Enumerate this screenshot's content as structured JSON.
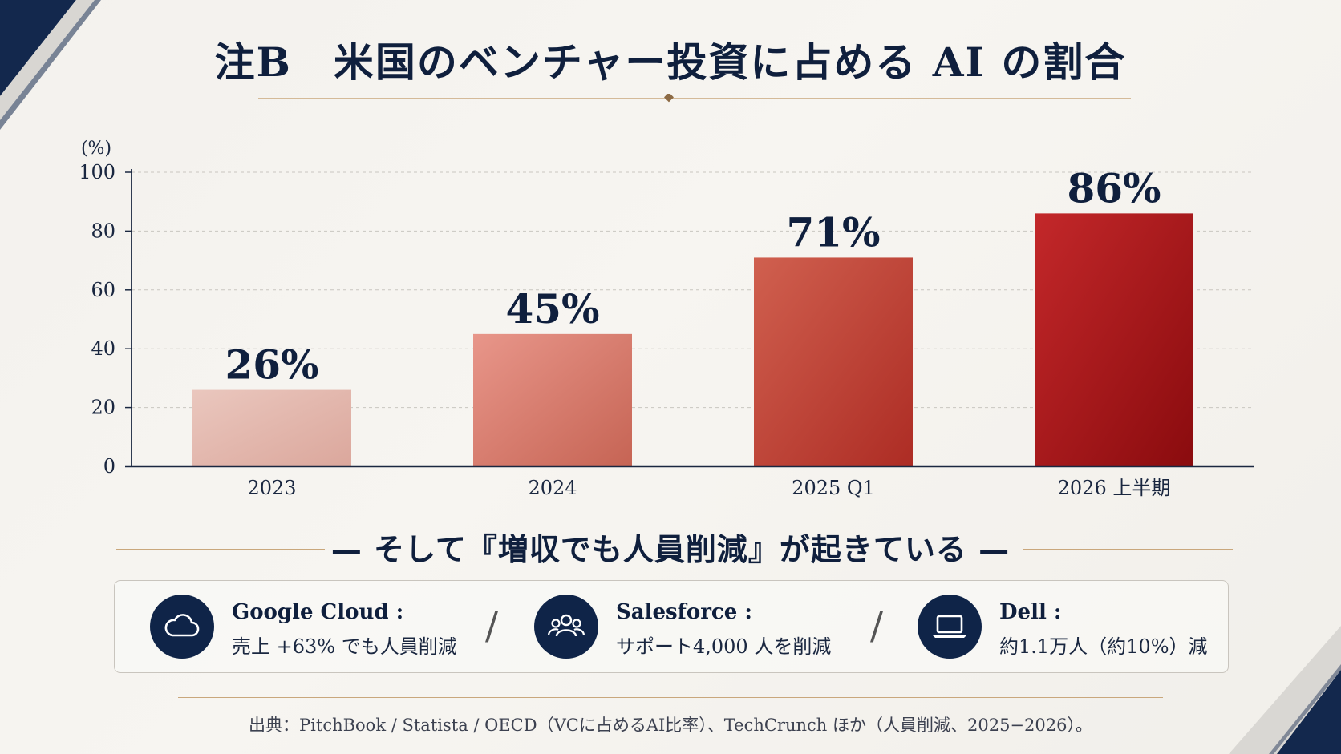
{
  "title": "注B　米国のベンチャー投資に占める AI の割合",
  "colors": {
    "navy": "#0f1f3d",
    "gold": "#c9a77c",
    "bar_light": "#e6bcb2",
    "bar_dark": "#9a1515"
  },
  "chart_data": {
    "type": "bar",
    "categories": [
      "2023",
      "2024",
      "2025 Q1",
      "2026 上半期"
    ],
    "values": [
      26,
      45,
      71,
      86
    ],
    "data_labels": [
      "26%",
      "45%",
      "71%",
      "86%"
    ],
    "ylabel": "(%)",
    "ylim": [
      0,
      100
    ],
    "yticks": [
      0,
      20,
      40,
      60,
      80,
      100
    ],
    "grid": true,
    "bar_colors": [
      [
        "#eac7be",
        "#dba79c"
      ],
      [
        "#e8968a",
        "#c66454"
      ],
      [
        "#d0604f",
        "#ad2c24"
      ],
      [
        "#c3282a",
        "#8a0b0e"
      ]
    ]
  },
  "subtitle": "— そして『増収でも人員削減』が起きている —",
  "examples": [
    {
      "icon": "cloud-icon",
      "name": "Google Cloud :",
      "desc": "売上 +63% でも人員削減"
    },
    {
      "icon": "people-icon",
      "name": "Salesforce :",
      "desc": "サポート4,000 人を削減"
    },
    {
      "icon": "laptop-icon",
      "name": "Dell :",
      "desc": "約1.1万人（約10%）減"
    }
  ],
  "separator": "/",
  "source": "出典：PitchBook / Statista / OECD（VCに占めるAI比率）、TechCrunch ほか（人員削減、2025−2026）。"
}
